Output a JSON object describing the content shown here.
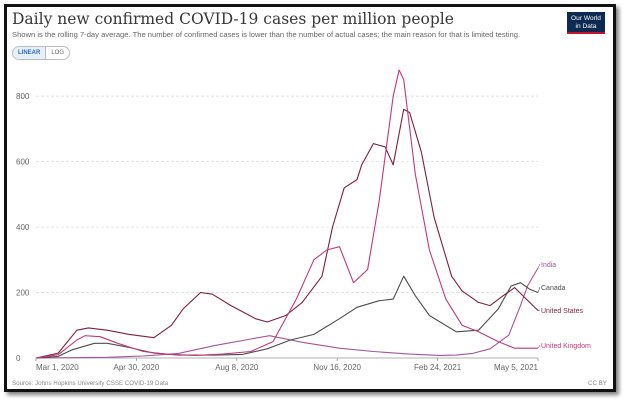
{
  "header": {
    "title": "Daily new confirmed COVID-19 cases per million people",
    "subtitle": "Shown is the rolling 7-day average. The number of confirmed cases is lower than the number of actual cases; the main reason for that is limited testing.",
    "logo_line1": "Our World",
    "logo_line2": "in Data"
  },
  "scale_toggle": {
    "linear": "LINEAR",
    "log": "LOG",
    "selected": "LINEAR"
  },
  "footer": {
    "source": "Source: Johns Hopkins University CSSE COVID-19 Data",
    "license": "CC BY"
  },
  "chart_data": {
    "type": "line",
    "x_start": "2020-03-01",
    "x_end": "2021-05-05",
    "x_ticks": [
      "Mar 1, 2020",
      "Apr 30, 2020",
      "Aug 8, 2020",
      "Nov 16, 2020",
      "Feb 24, 2021",
      "May 5, 2021"
    ],
    "ylim": [
      0,
      880
    ],
    "y_ticks": [
      0,
      200,
      400,
      600,
      800
    ],
    "grid": true,
    "series": [
      {
        "name": "India",
        "color": "#a2559c",
        "points": [
          [
            "2020-03-01",
            0
          ],
          [
            "2020-04-01",
            1
          ],
          [
            "2020-05-01",
            2
          ],
          [
            "2020-06-01",
            6
          ],
          [
            "2020-07-01",
            14
          ],
          [
            "2020-08-01",
            38
          ],
          [
            "2020-09-01",
            58
          ],
          [
            "2020-09-17",
            68
          ],
          [
            "2020-10-15",
            48
          ],
          [
            "2020-11-16",
            30
          ],
          [
            "2020-12-15",
            20
          ],
          [
            "2021-01-15",
            12
          ],
          [
            "2021-02-10",
            8
          ],
          [
            "2021-02-24",
            9
          ],
          [
            "2021-03-10",
            14
          ],
          [
            "2021-03-25",
            28
          ],
          [
            "2021-04-10",
            70
          ],
          [
            "2021-04-20",
            160
          ],
          [
            "2021-04-26",
            220
          ],
          [
            "2021-05-05",
            275
          ]
        ]
      },
      {
        "name": "Canada",
        "color": "#4c4c4c",
        "points": [
          [
            "2020-03-01",
            0
          ],
          [
            "2020-03-20",
            5
          ],
          [
            "2020-04-01",
            25
          ],
          [
            "2020-04-20",
            45
          ],
          [
            "2020-05-01",
            45
          ],
          [
            "2020-05-20",
            32
          ],
          [
            "2020-06-10",
            15
          ],
          [
            "2020-07-01",
            9
          ],
          [
            "2020-08-01",
            9
          ],
          [
            "2020-08-25",
            11
          ],
          [
            "2020-09-15",
            28
          ],
          [
            "2020-10-05",
            55
          ],
          [
            "2020-10-25",
            72
          ],
          [
            "2020-11-16",
            120
          ],
          [
            "2020-12-01",
            155
          ],
          [
            "2020-12-20",
            175
          ],
          [
            "2021-01-01",
            180
          ],
          [
            "2021-01-10",
            250
          ],
          [
            "2021-01-20",
            190
          ],
          [
            "2021-02-01",
            130
          ],
          [
            "2021-02-24",
            80
          ],
          [
            "2021-03-15",
            85
          ],
          [
            "2021-04-01",
            150
          ],
          [
            "2021-04-12",
            220
          ],
          [
            "2021-04-20",
            230
          ],
          [
            "2021-04-28",
            210
          ],
          [
            "2021-05-05",
            200
          ]
        ]
      },
      {
        "name": "United States",
        "color": "#7d1f3f",
        "points": [
          [
            "2020-03-01",
            0
          ],
          [
            "2020-03-20",
            15
          ],
          [
            "2020-04-05",
            85
          ],
          [
            "2020-04-15",
            92
          ],
          [
            "2020-05-01",
            85
          ],
          [
            "2020-05-20",
            72
          ],
          [
            "2020-06-10",
            62
          ],
          [
            "2020-06-25",
            100
          ],
          [
            "2020-07-05",
            150
          ],
          [
            "2020-07-20",
            200
          ],
          [
            "2020-07-30",
            195
          ],
          [
            "2020-08-15",
            160
          ],
          [
            "2020-09-05",
            120
          ],
          [
            "2020-09-15",
            110
          ],
          [
            "2020-10-01",
            130
          ],
          [
            "2020-10-15",
            170
          ],
          [
            "2020-11-01",
            250
          ],
          [
            "2020-11-10",
            400
          ],
          [
            "2020-11-20",
            520
          ],
          [
            "2020-12-01",
            545
          ],
          [
            "2020-12-05",
            590
          ],
          [
            "2020-12-15",
            655
          ],
          [
            "2020-12-25",
            645
          ],
          [
            "2021-01-01",
            590
          ],
          [
            "2021-01-10",
            760
          ],
          [
            "2021-01-15",
            750
          ],
          [
            "2021-01-25",
            630
          ],
          [
            "2021-02-05",
            430
          ],
          [
            "2021-02-20",
            250
          ],
          [
            "2021-03-01",
            205
          ],
          [
            "2021-03-15",
            170
          ],
          [
            "2021-03-25",
            160
          ],
          [
            "2021-04-05",
            190
          ],
          [
            "2021-04-15",
            215
          ],
          [
            "2021-04-25",
            180
          ],
          [
            "2021-05-05",
            145
          ]
        ]
      },
      {
        "name": "United Kingdom",
        "color": "#c0397a",
        "points": [
          [
            "2020-03-01",
            0
          ],
          [
            "2020-03-20",
            10
          ],
          [
            "2020-04-05",
            55
          ],
          [
            "2020-04-12",
            68
          ],
          [
            "2020-04-25",
            65
          ],
          [
            "2020-05-10",
            45
          ],
          [
            "2020-06-01",
            20
          ],
          [
            "2020-06-20",
            12
          ],
          [
            "2020-07-15",
            8
          ],
          [
            "2020-08-08",
            12
          ],
          [
            "2020-09-01",
            20
          ],
          [
            "2020-09-20",
            50
          ],
          [
            "2020-10-10",
            180
          ],
          [
            "2020-10-25",
            300
          ],
          [
            "2020-11-05",
            330
          ],
          [
            "2020-11-16",
            340
          ],
          [
            "2020-11-28",
            230
          ],
          [
            "2020-12-10",
            270
          ],
          [
            "2020-12-20",
            480
          ],
          [
            "2021-01-01",
            800
          ],
          [
            "2021-01-06",
            880
          ],
          [
            "2021-01-10",
            850
          ],
          [
            "2021-01-20",
            560
          ],
          [
            "2021-02-01",
            330
          ],
          [
            "2021-02-15",
            180
          ],
          [
            "2021-03-01",
            100
          ],
          [
            "2021-03-15",
            80
          ],
          [
            "2021-04-01",
            50
          ],
          [
            "2021-04-15",
            30
          ],
          [
            "2021-05-05",
            30
          ]
        ]
      }
    ]
  }
}
